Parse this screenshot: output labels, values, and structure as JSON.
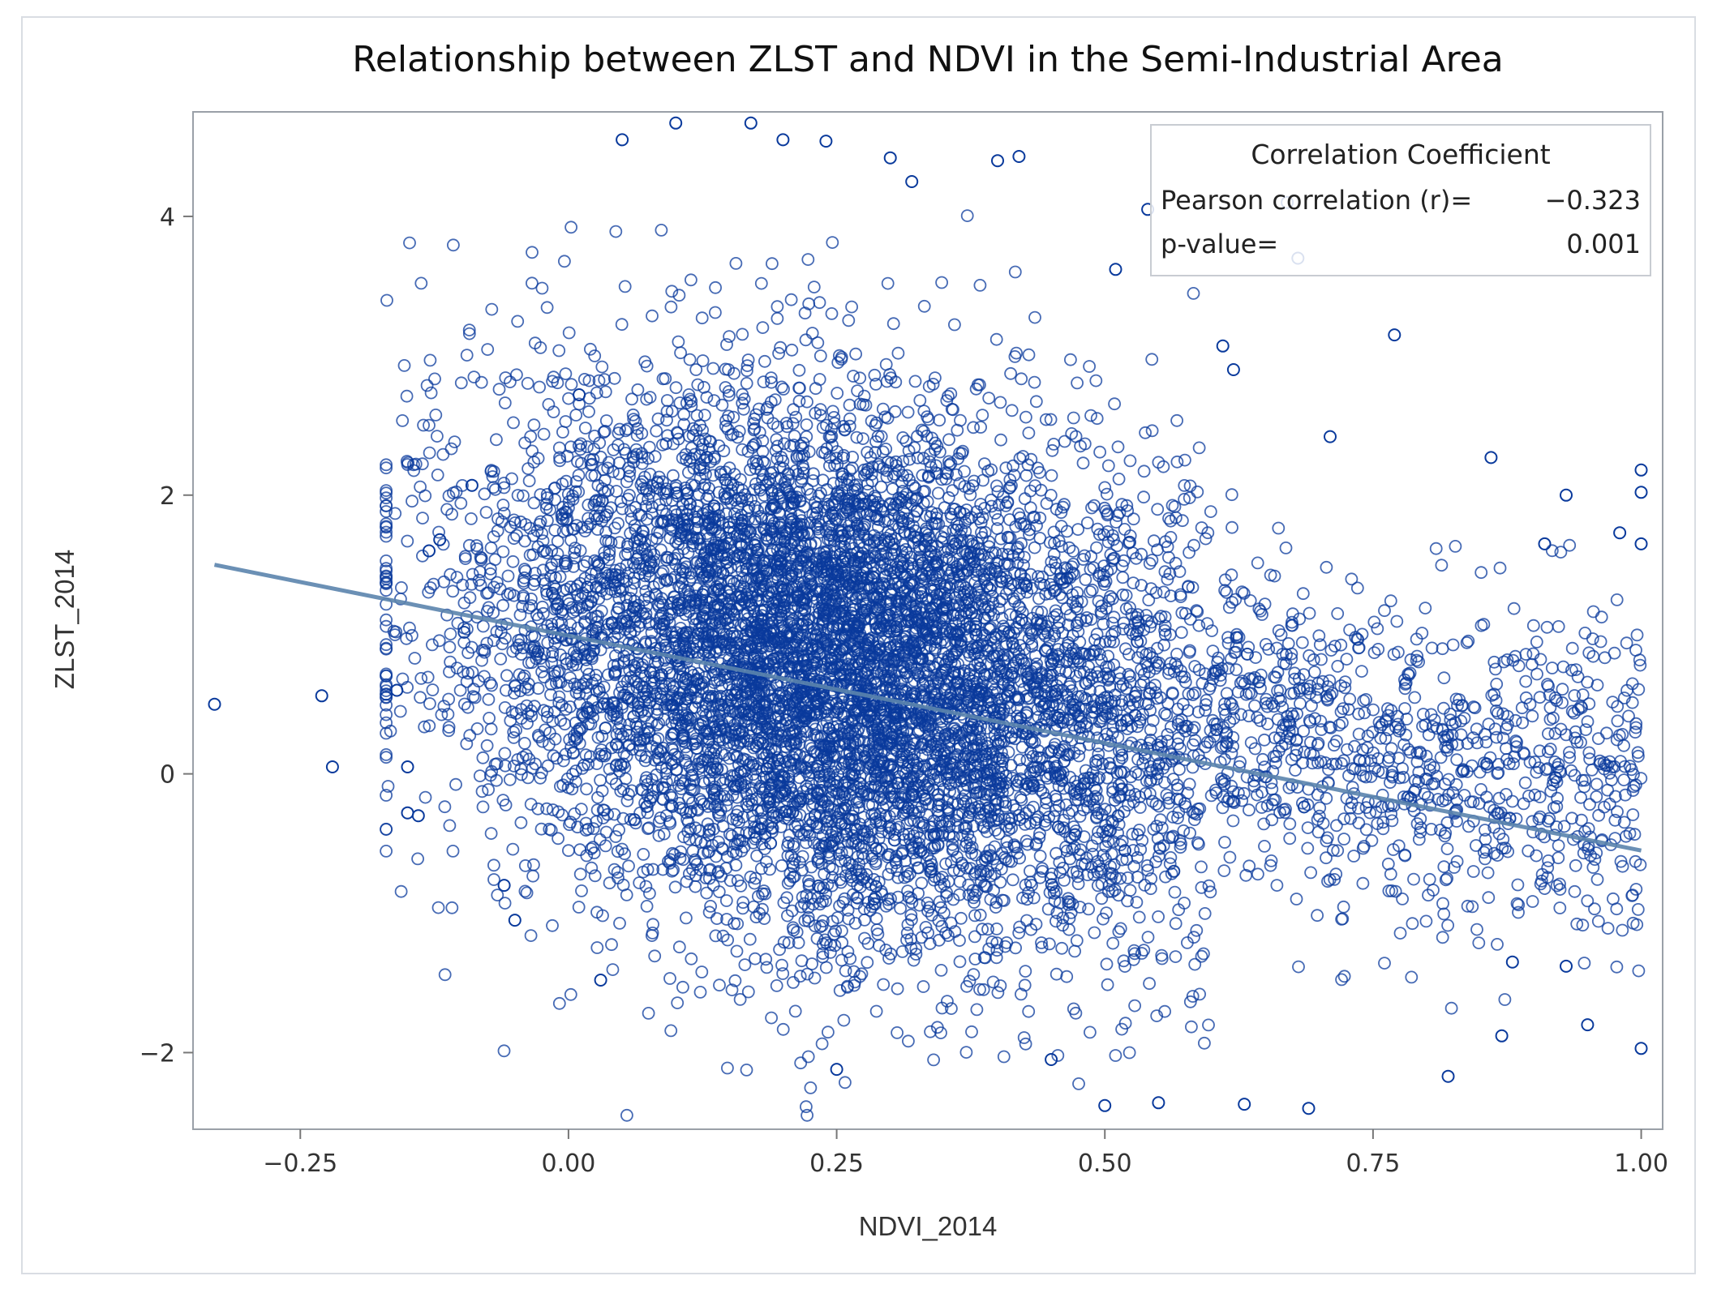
{
  "chart_data": {
    "type": "scatter",
    "title": "Relationship between ZLST and NDVI in the Semi-Industrial Area",
    "xlabel": "NDVI_2014",
    "ylabel": "ZLST_2014",
    "xlim": [
      -0.35,
      1.02
    ],
    "ylim": [
      -2.55,
      4.75
    ],
    "x_ticks": [
      -0.25,
      0.0,
      0.25,
      0.5,
      0.75,
      1.0
    ],
    "x_tick_labels": [
      "−0.25",
      "0.00",
      "0.25",
      "0.50",
      "0.75",
      "1.00"
    ],
    "y_ticks": [
      -2,
      0,
      2,
      4
    ],
    "y_tick_labels": [
      "−2",
      "0",
      "2",
      "4"
    ],
    "grid": false,
    "marker": "open-circle",
    "point_color": "#0a3a9c",
    "trend_color": "#5b84ad",
    "regression_line": {
      "x": [
        -0.33,
        1.0
      ],
      "y": [
        1.5,
        -0.55
      ]
    },
    "cloud": {
      "description": "dense point cloud of several thousand observations",
      "approx_count": 9000,
      "center_x": 0.24,
      "center_y": 0.55,
      "spread_x": 0.16,
      "spread_y": 0.95
    },
    "points": [
      [
        -0.33,
        0.5
      ],
      [
        -0.23,
        0.56
      ],
      [
        -0.22,
        0.05
      ],
      [
        -0.16,
        0.6
      ],
      [
        -0.15,
        -0.28
      ],
      [
        -0.14,
        -0.3
      ],
      [
        -0.15,
        0.05
      ],
      [
        -0.13,
        1.6
      ],
      [
        -0.12,
        1.68
      ],
      [
        -0.09,
        2.07
      ],
      [
        0.01,
        2.72
      ],
      [
        0.05,
        4.55
      ],
      [
        0.1,
        4.67
      ],
      [
        0.17,
        4.67
      ],
      [
        0.2,
        4.55
      ],
      [
        0.24,
        4.54
      ],
      [
        0.3,
        4.42
      ],
      [
        0.32,
        4.25
      ],
      [
        0.4,
        4.4
      ],
      [
        0.42,
        4.43
      ],
      [
        0.54,
        4.05
      ],
      [
        0.67,
        4.1
      ],
      [
        0.68,
        3.7
      ],
      [
        0.51,
        3.62
      ],
      [
        0.61,
        3.07
      ],
      [
        0.62,
        2.9
      ],
      [
        0.71,
        2.42
      ],
      [
        0.77,
        3.15
      ],
      [
        0.86,
        2.27
      ],
      [
        0.93,
        2.0
      ],
      [
        0.91,
        1.65
      ],
      [
        1.0,
        2.18
      ],
      [
        1.0,
        2.02
      ],
      [
        1.0,
        1.65
      ],
      [
        0.98,
        1.73
      ],
      [
        0.55,
        -2.36
      ],
      [
        0.69,
        -2.4
      ],
      [
        0.63,
        -2.37
      ],
      [
        0.5,
        -2.38
      ],
      [
        0.82,
        -2.17
      ],
      [
        0.87,
        -1.88
      ],
      [
        0.95,
        -1.8
      ],
      [
        1.0,
        -1.97
      ],
      [
        0.25,
        -2.12
      ],
      [
        0.45,
        -2.05
      ],
      [
        0.03,
        -1.48
      ],
      [
        -0.05,
        -1.05
      ],
      [
        -0.06,
        -0.8
      ],
      [
        0.88,
        -1.35
      ],
      [
        0.93,
        -1.38
      ]
    ],
    "legend": {
      "title": "Correlation Coefficient",
      "position": "top-right",
      "rows": [
        {
          "label": "Pearson correlation (r)=",
          "value": "−0.323"
        },
        {
          "label": "p-value=",
          "value": "0.001"
        }
      ]
    }
  }
}
